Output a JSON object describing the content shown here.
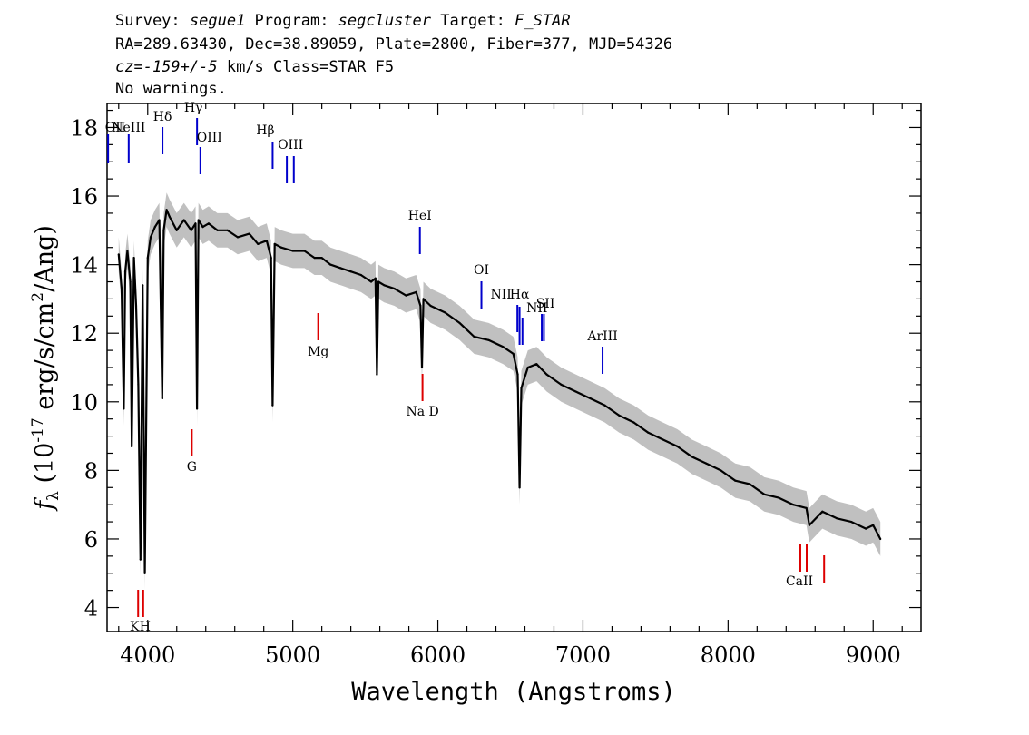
{
  "header": {
    "line1": [
      {
        "t": "Survey: ",
        "i": false
      },
      {
        "t": "segue1",
        "i": true
      },
      {
        "t": " Program: ",
        "i": false
      },
      {
        "t": "segcluster",
        "i": true
      },
      {
        "t": " Target: ",
        "i": false
      },
      {
        "t": "F_STAR",
        "i": true
      }
    ],
    "line2": "RA=289.63430, Dec=38.89059, Plate=2800, Fiber=377, MJD=54326",
    "line3": [
      {
        "t": "cz=-159+/-5",
        "i": true
      },
      {
        "t": " km/s Class=STAR F5",
        "i": false
      }
    ],
    "line4": "No warnings."
  },
  "colors": {
    "flux": "#000000",
    "error_band": "#c0c0c0",
    "emission_line": "#0000cc",
    "absorption_line": "#dd0000"
  },
  "chart_data": {
    "type": "line",
    "xlabel": "Wavelength (Angstroms)",
    "ylabel_parts": {
      "sym": "f",
      "sub": "λ",
      "pre": " (10",
      "exp": "-17",
      "mid": " erg/s/cm",
      "exp2": "2",
      "post": "/Ang)"
    },
    "xlim": [
      3720,
      9330
    ],
    "ylim": [
      3.3,
      18.7
    ],
    "xticks": [
      4000,
      5000,
      6000,
      7000,
      8000,
      9000
    ],
    "yticks": [
      4,
      6,
      8,
      10,
      12,
      14,
      16,
      18
    ],
    "series": [
      {
        "x": [
          3800,
          3820,
          3835,
          3845,
          3860,
          3880,
          3890,
          3905,
          3920,
          3935,
          3950,
          3965,
          3980,
          4000,
          4020,
          4050,
          4080,
          4100,
          4110,
          4130,
          4150,
          4200,
          4250,
          4300,
          4330,
          4340,
          4350,
          4380,
          4420,
          4480,
          4550,
          4620,
          4700,
          4760,
          4820,
          4850,
          4861,
          4875,
          4920,
          5000,
          5080,
          5150,
          5200,
          5260,
          5330,
          5400,
          5470,
          5540,
          5570,
          5580,
          5590,
          5630,
          5700,
          5780,
          5850,
          5880,
          5890,
          5900,
          5950,
          6050,
          6150,
          6250,
          6350,
          6450,
          6520,
          6550,
          6563,
          6575,
          6620,
          6680,
          6750,
          6850,
          6950,
          7050,
          7150,
          7250,
          7350,
          7450,
          7550,
          7650,
          7750,
          7850,
          7950,
          8050,
          8150,
          8250,
          8350,
          8450,
          8540,
          8560,
          8650,
          8750,
          8850,
          8950,
          9000,
          9050
        ],
        "y": [
          14.3,
          13.3,
          9.8,
          13.8,
          14.4,
          13.5,
          8.7,
          14.2,
          12.8,
          10.5,
          5.4,
          13.4,
          5.0,
          14.2,
          14.8,
          15.1,
          15.3,
          10.1,
          15.0,
          15.6,
          15.4,
          15.0,
          15.3,
          15.0,
          15.2,
          9.8,
          15.3,
          15.1,
          15.2,
          15.0,
          15.0,
          14.8,
          14.9,
          14.6,
          14.7,
          14.2,
          9.9,
          14.6,
          14.5,
          14.4,
          14.4,
          14.2,
          14.2,
          14.0,
          13.9,
          13.8,
          13.7,
          13.5,
          13.6,
          10.8,
          13.5,
          13.4,
          13.3,
          13.1,
          13.2,
          12.8,
          11.0,
          13.0,
          12.8,
          12.6,
          12.3,
          11.9,
          11.8,
          11.6,
          11.4,
          10.8,
          7.5,
          10.4,
          11.0,
          11.1,
          10.8,
          10.5,
          10.3,
          10.1,
          9.9,
          9.6,
          9.4,
          9.1,
          8.9,
          8.7,
          8.4,
          8.2,
          8.0,
          7.7,
          7.6,
          7.3,
          7.2,
          7.0,
          6.9,
          6.4,
          6.8,
          6.6,
          6.5,
          6.3,
          6.4,
          6.0
        ],
        "err": 0.5
      }
    ],
    "emission_lines": [
      {
        "label": "OII",
        "x": 3727
      },
      {
        "label": "NeIII",
        "x": 3869
      },
      {
        "label": "Hδ",
        "x": 4102
      },
      {
        "label": "Hγ",
        "x": 4340
      },
      {
        "label": "OIII",
        "x": 4363
      },
      {
        "label": "Hβ",
        "x": 4861
      },
      {
        "label": "OIII",
        "x": 4959
      },
      {
        "label": "OIII",
        "x": 5007
      },
      {
        "label": "HeI",
        "x": 5876
      },
      {
        "label": "OI",
        "x": 6300
      },
      {
        "label": "NII",
        "x": 6548
      },
      {
        "label": "Hα",
        "x": 6563
      },
      {
        "label": "NII",
        "x": 6583
      },
      {
        "label": "SII",
        "x": 6716
      },
      {
        "label": "SII",
        "x": 6731
      },
      {
        "label": "ArIII",
        "x": 7135
      }
    ],
    "absorption_lines": [
      {
        "label": "K",
        "x": 3934
      },
      {
        "label": "H",
        "x": 3969
      },
      {
        "label": "G",
        "x": 4304
      },
      {
        "label": "Mg",
        "x": 5175
      },
      {
        "label": "Na D",
        "x": 5894
      },
      {
        "label": "CaII",
        "x": 8498
      },
      {
        "label": "CaII",
        "x": 8542
      },
      {
        "label": "CaII",
        "x": 8662
      }
    ]
  }
}
